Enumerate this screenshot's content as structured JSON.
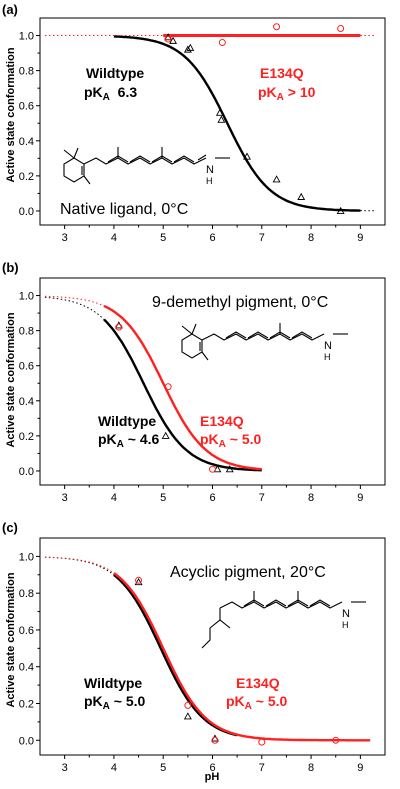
{
  "colors": {
    "wildtype": "#000000",
    "mutant": "#ff2020"
  },
  "chart_data": [
    {
      "panel": "(a)",
      "type": "scatter",
      "title": "Native ligand, 0°C",
      "xlabel": "",
      "ylabel": "Active state conformation",
      "xlim": [
        2.5,
        9.5
      ],
      "ylim": [
        -0.08,
        1.1
      ],
      "xticks": [
        3,
        4,
        5,
        6,
        7,
        8,
        9
      ],
      "yticks": [
        0.0,
        0.2,
        0.4,
        0.6,
        0.8,
        1.0
      ],
      "annotations": [
        {
          "line1": "Wildtype",
          "pka_pre": "pK",
          "pka_sub": "A",
          "pka_post": "  6.3",
          "color": "wildtype"
        },
        {
          "line1": "E134Q",
          "pka_pre": "pK",
          "pka_sub": "A",
          "pka_post": " > 10",
          "color": "mutant"
        }
      ],
      "series": [
        {
          "name": "Wildtype",
          "marker": "triangle",
          "color": "wildtype",
          "points": [
            [
              5.1,
              0.99
            ],
            [
              5.2,
              0.97
            ],
            [
              5.5,
              0.92
            ],
            [
              5.55,
              0.93
            ],
            [
              6.15,
              0.56
            ],
            [
              6.18,
              0.52
            ],
            [
              6.7,
              0.31
            ],
            [
              7.3,
              0.18
            ],
            [
              7.8,
              0.08
            ],
            [
              8.6,
              0.0
            ]
          ],
          "fit": {
            "kind": "sigmoid",
            "pka": 6.3,
            "n": 1,
            "top": 1.0,
            "solid": [
              4.0,
              9.0
            ],
            "dotted": [
              9.0,
              9.3
            ]
          }
        },
        {
          "name": "E134Q",
          "marker": "circle",
          "color": "mutant",
          "points": [
            [
              5.1,
              0.98
            ],
            [
              6.2,
              0.96
            ],
            [
              7.3,
              1.05
            ],
            [
              8.6,
              1.04
            ]
          ],
          "fit": {
            "kind": "constant",
            "value": 1.0,
            "solid": [
              5.0,
              9.0
            ],
            "dotted": [
              9.0,
              9.3
            ],
            "dotted_left": [
              2.6,
              5.0
            ]
          }
        }
      ]
    },
    {
      "panel": "(b)",
      "type": "scatter",
      "title": "9-demethyl pigment, 0°C",
      "xlabel": "",
      "ylabel": "Active state conformation",
      "xlim": [
        2.5,
        9.5
      ],
      "ylim": [
        -0.08,
        1.1
      ],
      "xticks": [
        3,
        4,
        5,
        6,
        7,
        8,
        9
      ],
      "yticks": [
        0.0,
        0.2,
        0.4,
        0.6,
        0.8,
        1.0
      ],
      "annotations": [
        {
          "line1": "Wildtype",
          "pka_pre": "pK",
          "pka_sub": "A",
          "pka_post": " ~ 4.6",
          "color": "wildtype"
        },
        {
          "line1": "E134Q",
          "pka_pre": "pK",
          "pka_sub": "A",
          "pka_post": " ~ 5.0",
          "color": "mutant"
        }
      ],
      "series": [
        {
          "name": "Wildtype",
          "marker": "triangle",
          "color": "wildtype",
          "points": [
            [
              4.1,
              0.83
            ],
            [
              5.05,
              0.2
            ],
            [
              6.1,
              0.01
            ],
            [
              6.35,
              0.01
            ]
          ],
          "fit": {
            "kind": "sigmoid",
            "pka": 4.6,
            "n": 1,
            "top": 1.0,
            "solid": [
              3.8,
              7.0
            ],
            "dotted": [
              2.6,
              3.8
            ]
          }
        },
        {
          "name": "E134Q",
          "marker": "circle",
          "color": "mutant",
          "points": [
            [
              4.1,
              0.82
            ],
            [
              5.1,
              0.48
            ],
            [
              6.0,
              0.01
            ]
          ],
          "fit": {
            "kind": "sigmoid",
            "pka": 5.0,
            "n": 1,
            "top": 1.0,
            "solid": [
              3.8,
              7.0
            ],
            "dotted": [
              2.6,
              3.8
            ]
          }
        }
      ]
    },
    {
      "panel": "(c)",
      "type": "scatter",
      "title": "Acyclic pigment, 20°C",
      "xlabel": "pH",
      "ylabel": "Active state conformation",
      "xlim": [
        2.5,
        9.5
      ],
      "ylim": [
        -0.08,
        1.1
      ],
      "xticks": [
        3,
        4,
        5,
        6,
        7,
        8,
        9
      ],
      "yticks": [
        0.0,
        0.2,
        0.4,
        0.6,
        0.8,
        1.0
      ],
      "annotations": [
        {
          "line1": "Wildtype",
          "pka_pre": "pK",
          "pka_sub": "A",
          "pka_post": " ~ 5.0",
          "color": "wildtype"
        },
        {
          "line1": "E134Q",
          "pka_pre": "pK",
          "pka_sub": "A",
          "pka_post": " ~ 5.0",
          "color": "mutant"
        }
      ],
      "series": [
        {
          "name": "Wildtype",
          "marker": "triangle",
          "color": "wildtype",
          "points": [
            [
              4.5,
              0.86
            ],
            [
              5.5,
              0.13
            ],
            [
              6.05,
              0.01
            ]
          ],
          "fit": {
            "kind": "sigmoid",
            "pka": 4.95,
            "n": 1,
            "top": 1.0,
            "solid": [
              4.0,
              6.5
            ],
            "dotted": [
              2.6,
              4.0
            ]
          }
        },
        {
          "name": "E134Q",
          "marker": "circle",
          "color": "mutant",
          "points": [
            [
              4.5,
              0.87
            ],
            [
              5.5,
              0.19
            ],
            [
              6.05,
              0.0
            ],
            [
              7.0,
              -0.01
            ],
            [
              8.5,
              0.0
            ]
          ],
          "fit": {
            "kind": "sigmoid",
            "pka": 5.0,
            "n": 1,
            "top": 1.0,
            "solid": [
              4.0,
              9.2
            ],
            "dotted": [
              2.6,
              4.0
            ]
          }
        }
      ]
    }
  ]
}
